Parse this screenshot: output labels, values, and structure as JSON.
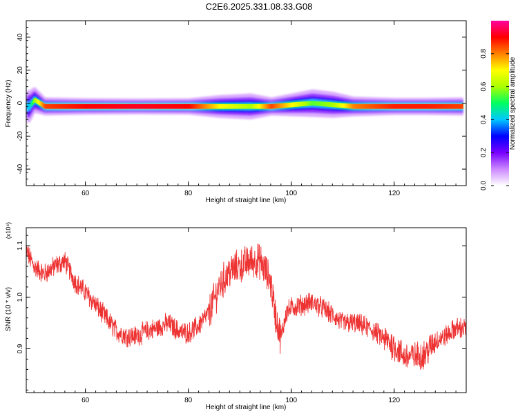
{
  "title": "C2E6.2025.331.08.33.G08",
  "chart_data": [
    {
      "type": "heatmap",
      "xlabel": "Height of straight line (km)",
      "ylabel": "Frequency (Hz)",
      "xlim": [
        48.5,
        134
      ],
      "ylim": [
        -50,
        50
      ],
      "xticks": [
        60,
        80,
        100,
        120
      ],
      "yticks": [
        -40,
        -20,
        0,
        20,
        40
      ],
      "colorbar": {
        "label": "Normalized spectral amplitude",
        "range": [
          0,
          1
        ],
        "ticks": [
          "0.0",
          "0.2",
          "0.4",
          "0.6",
          "0.8"
        ],
        "colors": [
          "#ffffff",
          "#cc88ff",
          "#7700ff",
          "#0000ff",
          "#00c8ff",
          "#00ff60",
          "#aaff00",
          "#ffff00",
          "#ff8000",
          "#ff0000",
          "#ff00a0"
        ]
      },
      "ridge": {
        "description_points": [
          {
            "x": 49,
            "y": -2,
            "amp": 0.4
          },
          {
            "x": 50,
            "y": 2,
            "amp": 0.6
          },
          {
            "x": 52,
            "y": -2,
            "amp": 0.85
          },
          {
            "x": 60,
            "y": -2,
            "amp": 0.9
          },
          {
            "x": 70,
            "y": -2,
            "amp": 0.92
          },
          {
            "x": 80,
            "y": -2,
            "amp": 0.9
          },
          {
            "x": 86,
            "y": -2,
            "amp": 0.7
          },
          {
            "x": 92,
            "y": -2,
            "amp": 0.6
          },
          {
            "x": 96,
            "y": -2,
            "amp": 0.85
          },
          {
            "x": 100,
            "y": -1,
            "amp": 0.7
          },
          {
            "x": 104,
            "y": 0,
            "amp": 0.55
          },
          {
            "x": 108,
            "y": -1,
            "amp": 0.6
          },
          {
            "x": 112,
            "y": -2,
            "amp": 0.8
          },
          {
            "x": 120,
            "y": -2,
            "amp": 0.88
          },
          {
            "x": 126,
            "y": -2,
            "amp": 0.88
          },
          {
            "x": 133,
            "y": -2,
            "amp": 0.85
          }
        ]
      }
    },
    {
      "type": "line",
      "xlabel": "Height of straight line (km)",
      "ylabel": "SNR (10 * v/v)",
      "ylabel_scale": "(x10⁴)",
      "xlim": [
        48.5,
        134
      ],
      "ylim": [
        0.815,
        1.135
      ],
      "xticks": [
        60,
        80,
        100,
        120
      ],
      "yticks": [
        "0.9",
        "1.0",
        "1.1"
      ],
      "ytick_values": [
        0.9,
        1.0,
        1.1
      ],
      "series": [
        {
          "color": "#ee3333",
          "x": [
            48.5,
            50,
            52,
            54,
            56,
            58,
            60,
            62,
            64,
            66,
            68,
            70,
            72,
            74,
            76,
            78,
            80,
            82,
            84,
            86,
            88,
            90,
            92,
            94,
            96,
            97,
            98,
            99,
            100,
            102,
            104,
            106,
            108,
            110,
            112,
            114,
            116,
            118,
            120,
            122,
            124,
            126,
            128,
            130,
            132,
            134
          ],
          "y": [
            1.09,
            1.06,
            1.045,
            1.06,
            1.07,
            1.03,
            1.01,
            0.985,
            0.96,
            0.935,
            0.925,
            0.925,
            0.935,
            0.94,
            0.95,
            0.935,
            0.93,
            0.945,
            0.97,
            1.02,
            1.05,
            1.06,
            1.07,
            1.07,
            1.03,
            0.96,
            0.92,
            0.97,
            0.98,
            0.985,
            0.99,
            0.98,
            0.965,
            0.95,
            0.95,
            0.945,
            0.935,
            0.92,
            0.905,
            0.885,
            0.885,
            0.89,
            0.915,
            0.925,
            0.94,
            0.94
          ]
        }
      ]
    }
  ]
}
